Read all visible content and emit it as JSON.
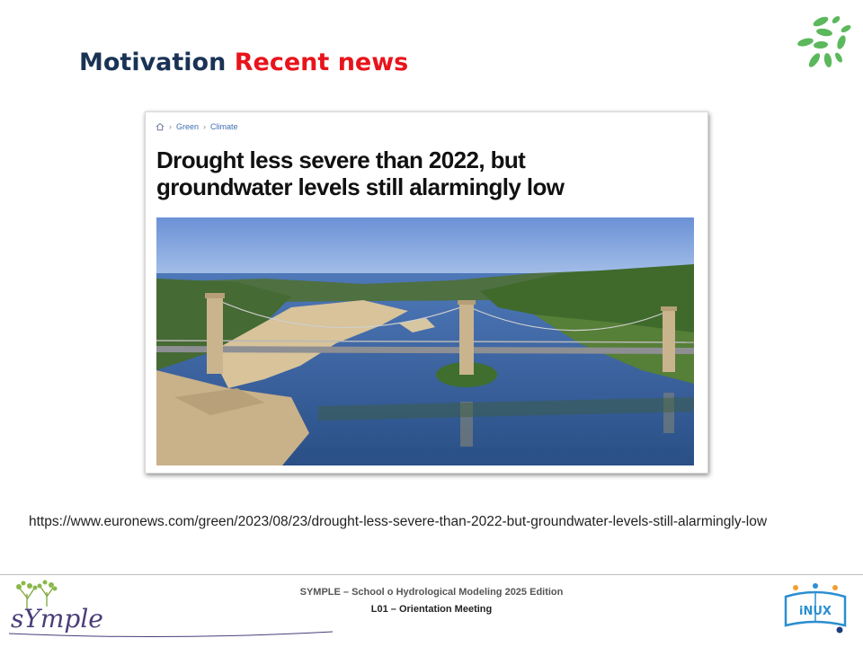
{
  "slide": {
    "title_part1": "Motivation",
    "title_part2": "Recent news",
    "title_color_1": "#1a3355",
    "title_color_2": "#e8141b",
    "decor_icon": "leaves-icon"
  },
  "article": {
    "breadcrumb": [
      "Green",
      "Climate"
    ],
    "breadcrumb_home_icon": "home-icon",
    "headline": "Drought less severe than 2022, but groundwater levels still alarmingly low",
    "image": "river-bridge-drought-photo"
  },
  "source_url": "https://www.euronews.com/green/2023/08/23/drought-less-severe-than-2022-but-groundwater-levels-still-alarmingly-low",
  "footer": {
    "logo_left_text": "sYmple",
    "line1": "SYMPLE – School o Hydrological Modeling 2025 Edition",
    "line2": "L01 – Orientation Meeting",
    "logo_right_text": "iNUX"
  }
}
